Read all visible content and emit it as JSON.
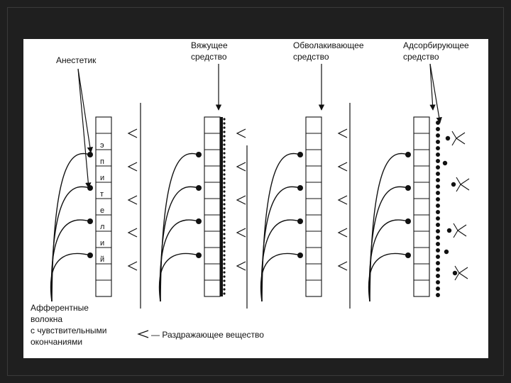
{
  "labels": {
    "anesthetic": "Анестетик",
    "astringent": [
      "Вяжущее",
      "средство"
    ],
    "enveloping": [
      "Обволакивающее",
      "средство"
    ],
    "adsorbent": [
      "Адсорбирующее",
      "средство"
    ],
    "afferent": [
      "Афферентные",
      "волокна",
      "с чувствительными",
      "окончаниями"
    ],
    "legend": "— Раздражающее вещество"
  },
  "epithelium_letters": [
    "э",
    "п",
    "и",
    "т",
    "е",
    "л",
    "и",
    "й"
  ]
}
